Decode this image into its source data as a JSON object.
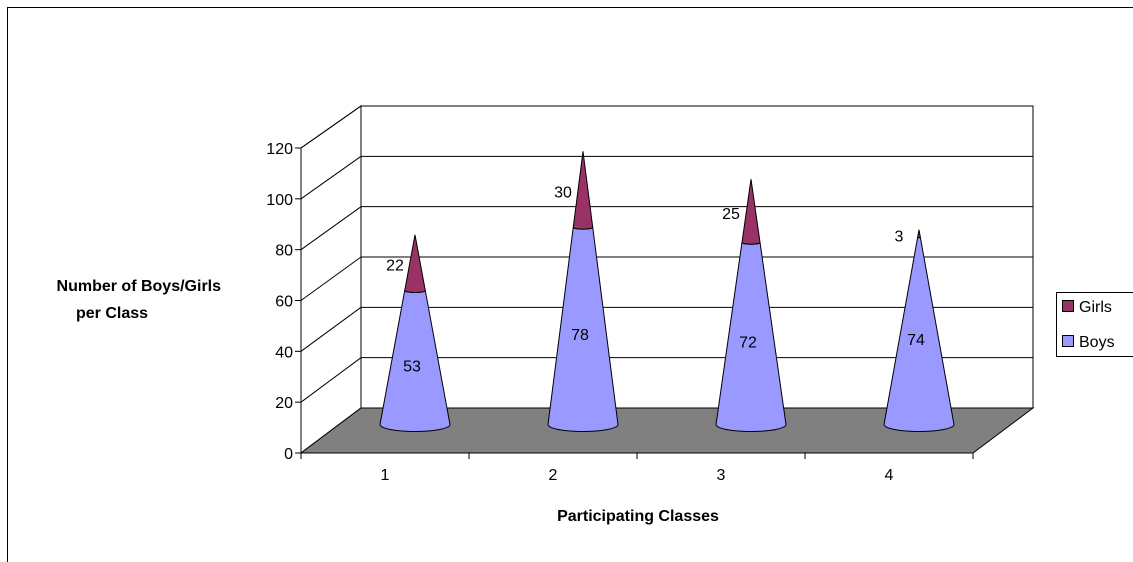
{
  "chart_data": {
    "type": "bar",
    "bar_shape": "3d-cone-stacked",
    "categories": [
      "1",
      "2",
      "3",
      "4"
    ],
    "series": [
      {
        "name": "Boys",
        "values": [
          53,
          78,
          72,
          74
        ],
        "color": "#9999ff"
      },
      {
        "name": "Girls",
        "values": [
          22,
          30,
          25,
          3
        ],
        "color": "#993366"
      }
    ],
    "xlabel": "Participating Classes",
    "ylabel": [
      "Number of Boys/Girls",
      "per Class"
    ],
    "ylim": [
      0,
      120
    ],
    "yticks": [
      0,
      20,
      40,
      60,
      80,
      100,
      120
    ],
    "grid": true,
    "legend": {
      "position": "right",
      "entries": [
        "Girls",
        "Boys"
      ]
    },
    "floor_color": "#808080"
  }
}
